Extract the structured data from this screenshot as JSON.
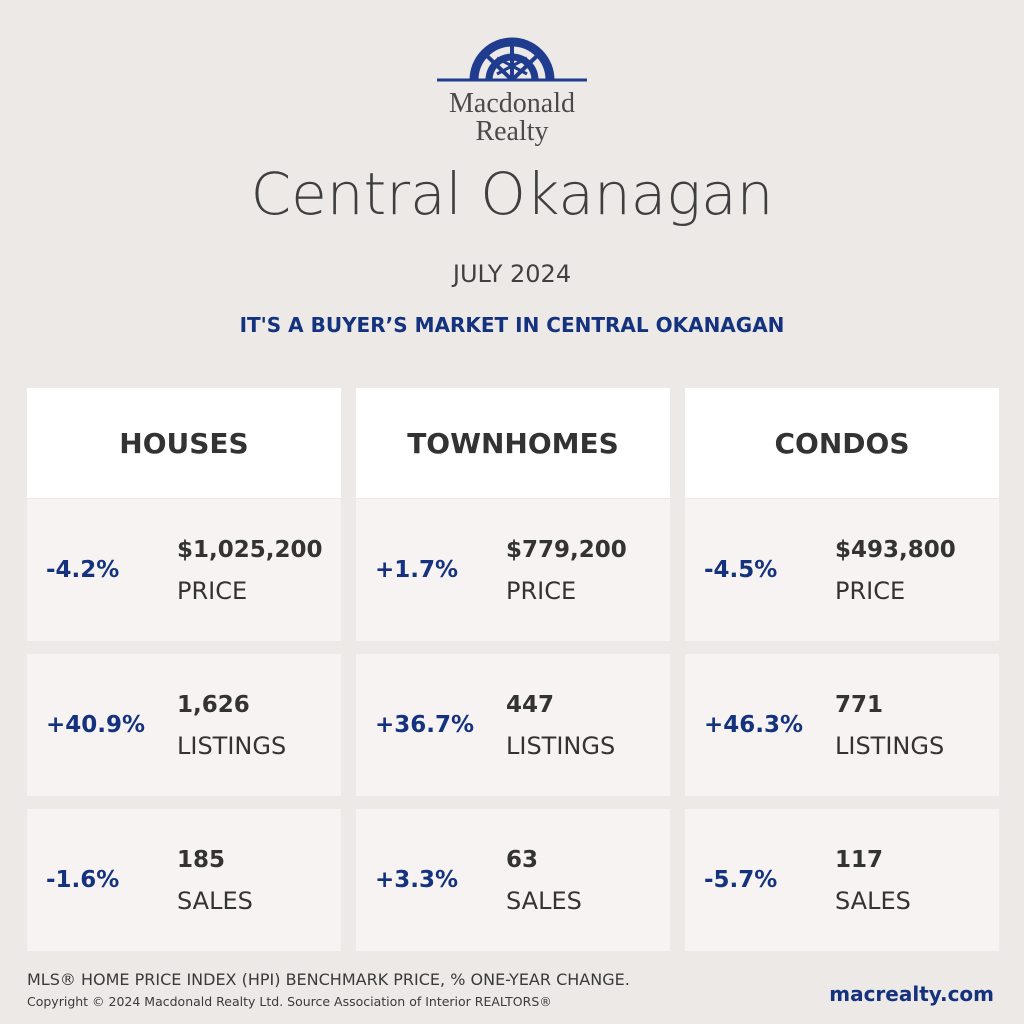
{
  "brand": {
    "line1": "Macdonald",
    "line2": "Realty",
    "color": "#1f3c8f"
  },
  "title": "Central Okanagan",
  "month": "JULY 2024",
  "headline": "IT'S A BUYER’S MARKET IN CENTRAL OKANAGAN",
  "columns": [
    {
      "heading": "HOUSES",
      "price": {
        "change": "-4.2%",
        "value": "$1,025,200",
        "label": "PRICE"
      },
      "listings": {
        "change": "+40.9%",
        "value": "1,626",
        "label": "LISTINGS"
      },
      "sales": {
        "change": "-1.6%",
        "value": "185",
        "label": "SALES"
      }
    },
    {
      "heading": "TOWNHOMES",
      "price": {
        "change": "+1.7%",
        "value": "$779,200",
        "label": "PRICE"
      },
      "listings": {
        "change": "+36.7%",
        "value": "447",
        "label": "LISTINGS"
      },
      "sales": {
        "change": "+3.3%",
        "value": "63",
        "label": "SALES"
      }
    },
    {
      "heading": "CONDOS",
      "price": {
        "change": "-4.5%",
        "value": "$493,800",
        "label": "PRICE"
      },
      "listings": {
        "change": "+46.3%",
        "value": "771",
        "label": "LISTINGS"
      },
      "sales": {
        "change": "-5.7%",
        "value": "117",
        "label": "SALES"
      }
    }
  ],
  "footnote": "MLS® HOME PRICE INDEX (HPI) BENCHMARK PRICE, % ONE-YEAR CHANGE.",
  "copyright": "Copyright © 2024 Macdonald Realty Ltd. Source Association of Interior REALTORS®",
  "website": "macrealty.com"
}
